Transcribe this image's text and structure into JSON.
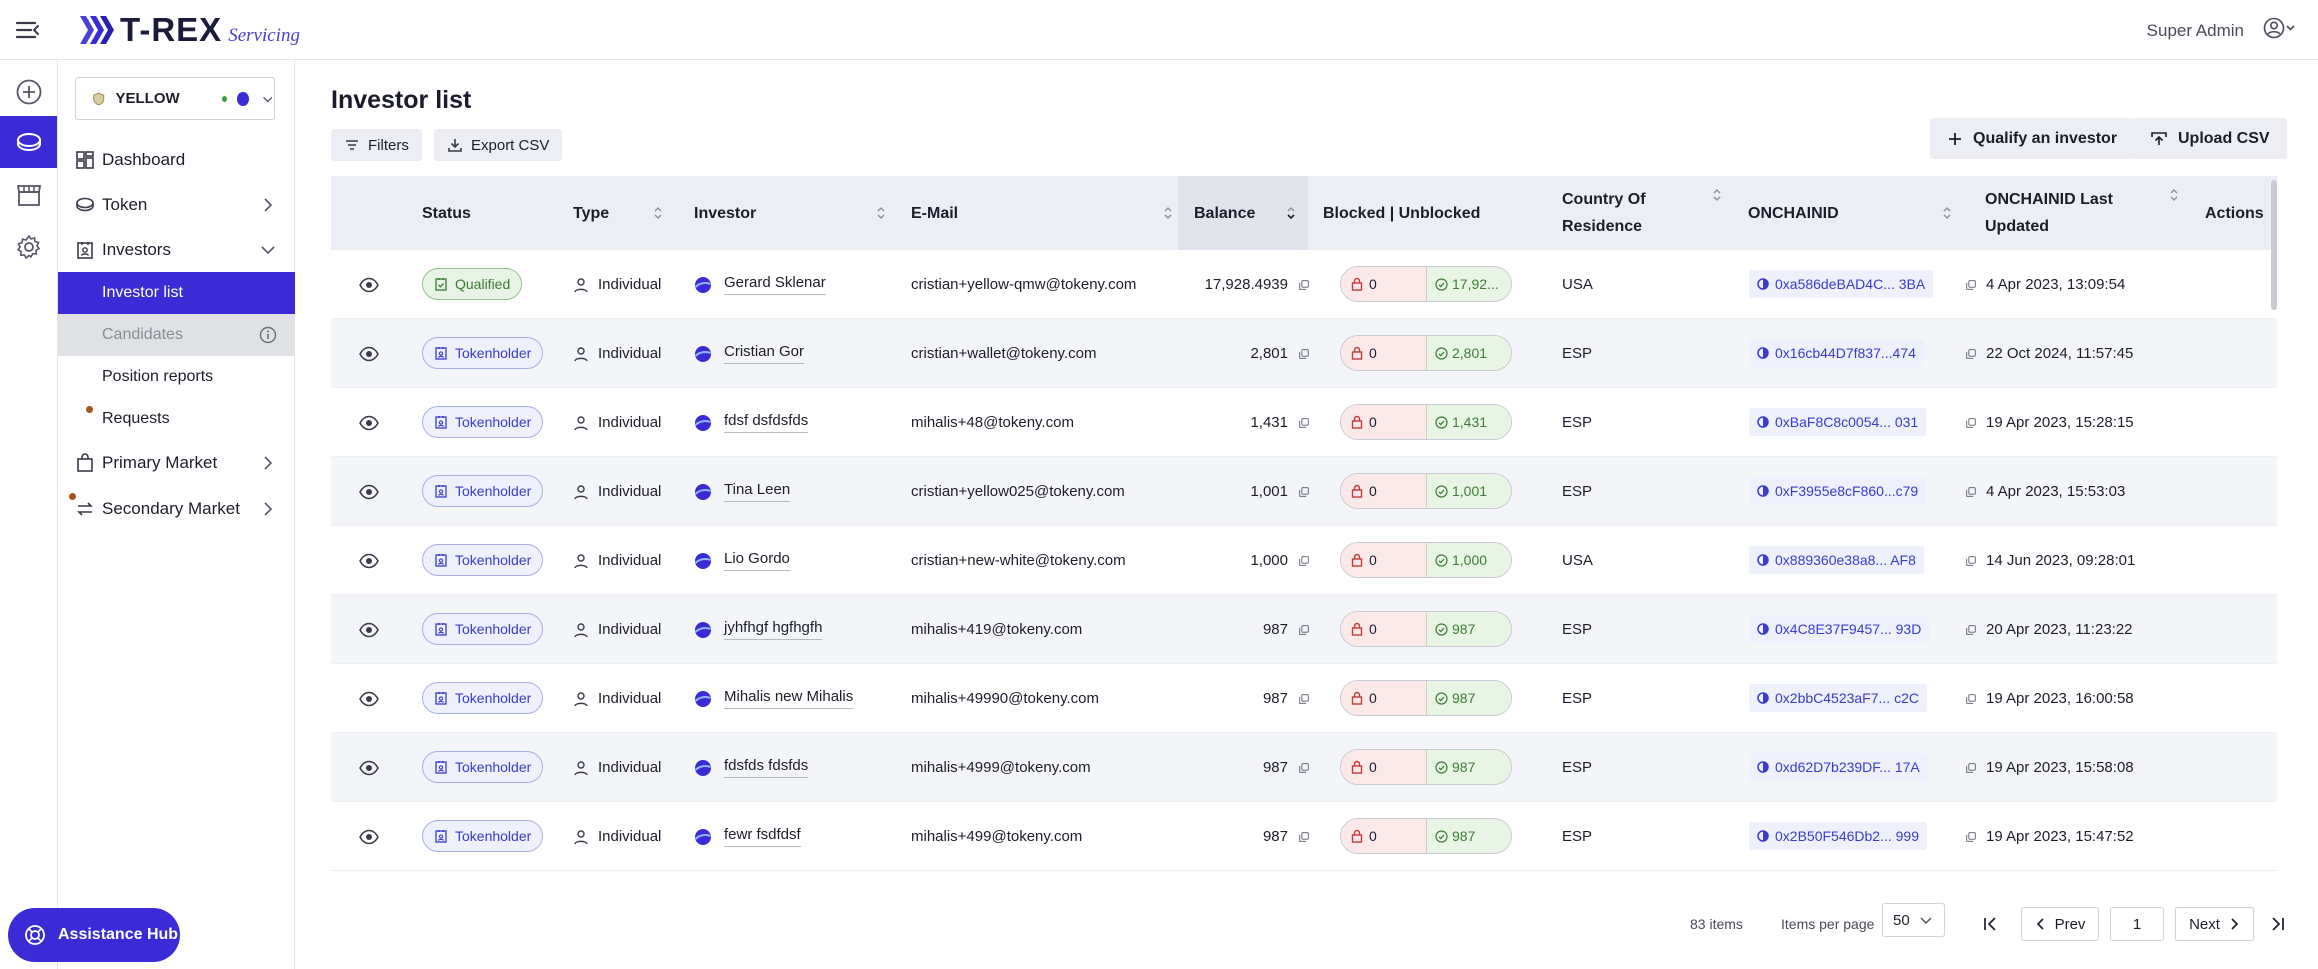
{
  "brand": {
    "name": "T-REX",
    "sub": "Servicing"
  },
  "user": {
    "name": "Super Admin"
  },
  "token_selector": {
    "name": "YELLOW"
  },
  "nav": {
    "dashboard": "Dashboard",
    "token": "Token",
    "investors": "Investors",
    "investor_list": "Investor list",
    "candidates": "Candidates",
    "position_reports": "Position reports",
    "requests": "Requests",
    "primary_market": "Primary Market",
    "secondary_market": "Secondary Market"
  },
  "assistance": "Assistance Hub",
  "page": {
    "title": "Investor list",
    "filters": "Filters",
    "export_csv": "Export CSV",
    "qualify": "Qualify an investor",
    "upload_csv": "Upload CSV"
  },
  "columns": {
    "status": "Status",
    "type": "Type",
    "investor": "Investor",
    "email": "E-Mail",
    "balance": "Balance",
    "blocked": "Blocked | Unblocked",
    "country_1": "Country Of",
    "country_2": "Residence",
    "onchainid": "ONCHAINID",
    "onchain_updated_1": "ONCHAINID Last",
    "onchain_updated_2": "Updated",
    "actions": "Actions"
  },
  "rows": [
    {
      "status": "Qualified",
      "status_kind": "qualified",
      "type": "Individual",
      "investor": "Gerard Sklenar",
      "email": "cristian+yellow-qmw@tokeny.com",
      "balance": "17,928.4939",
      "blocked": "0",
      "unblocked": "17,92...",
      "country": "USA",
      "onchainid": "0xa586deBAD4C... 3BA",
      "updated": "4 Apr 2023, 13:09:54"
    },
    {
      "status": "Tokenholder",
      "status_kind": "tokenholder",
      "type": "Individual",
      "investor": "Cristian Gor",
      "email": "cristian+wallet@tokeny.com",
      "balance": "2,801",
      "blocked": "0",
      "unblocked": "2,801",
      "country": "ESP",
      "onchainid": "0x16cb44D7f837...474",
      "updated": "22 Oct 2024, 11:57:45"
    },
    {
      "status": "Tokenholder",
      "status_kind": "tokenholder",
      "type": "Individual",
      "investor": "fdsf dsfdsfds",
      "email": "mihalis+48@tokeny.com",
      "balance": "1,431",
      "blocked": "0",
      "unblocked": "1,431",
      "country": "ESP",
      "onchainid": "0xBaF8C8c0054... 031",
      "updated": "19 Apr 2023, 15:28:15"
    },
    {
      "status": "Tokenholder",
      "status_kind": "tokenholder",
      "type": "Individual",
      "investor": "Tina Leen",
      "email": "cristian+yellow025@tokeny.com",
      "balance": "1,001",
      "blocked": "0",
      "unblocked": "1,001",
      "country": "ESP",
      "onchainid": "0xF3955e8cF860...c79",
      "updated": "4 Apr 2023, 15:53:03"
    },
    {
      "status": "Tokenholder",
      "status_kind": "tokenholder",
      "type": "Individual",
      "investor": "Lio Gordo",
      "email": "cristian+new-white@tokeny.com",
      "balance": "1,000",
      "blocked": "0",
      "unblocked": "1,000",
      "country": "USA",
      "onchainid": "0x889360e38a8... AF8",
      "updated": "14 Jun 2023, 09:28:01"
    },
    {
      "status": "Tokenholder",
      "status_kind": "tokenholder",
      "type": "Individual",
      "investor": "jyhfhgf hgfhgfh",
      "email": "mihalis+419@tokeny.com",
      "balance": "987",
      "blocked": "0",
      "unblocked": "987",
      "country": "ESP",
      "onchainid": "0x4C8E37F9457... 93D",
      "updated": "20 Apr 2023, 11:23:22"
    },
    {
      "status": "Tokenholder",
      "status_kind": "tokenholder",
      "type": "Individual",
      "investor": "Mihalis new Mihalis",
      "email": "mihalis+49990@tokeny.com",
      "balance": "987",
      "blocked": "0",
      "unblocked": "987",
      "country": "ESP",
      "onchainid": "0x2bbC4523aF7... c2C",
      "updated": "19 Apr 2023, 16:00:58"
    },
    {
      "status": "Tokenholder",
      "status_kind": "tokenholder",
      "type": "Individual",
      "investor": "fdsfds fdsfds",
      "email": "mihalis+4999@tokeny.com",
      "balance": "987",
      "blocked": "0",
      "unblocked": "987",
      "country": "ESP",
      "onchainid": "0xd62D7b239DF... 17A",
      "updated": "19 Apr 2023, 15:58:08"
    },
    {
      "status": "Tokenholder",
      "status_kind": "tokenholder",
      "type": "Individual",
      "investor": "fewr fsdfdsf",
      "email": "mihalis+499@tokeny.com",
      "balance": "987",
      "blocked": "0",
      "unblocked": "987",
      "country": "ESP",
      "onchainid": "0x2B50F546Db2... 999",
      "updated": "19 Apr 2023, 15:47:52"
    }
  ],
  "pagination": {
    "items": "83 items",
    "per_page_label": "Items per page",
    "per_page": "50",
    "prev": "Prev",
    "page": "1",
    "next": "Next"
  },
  "colors": {
    "accent": "#3b2bd6",
    "qualified": "#3a7a32",
    "tokenholder": "#3b3bcf"
  }
}
